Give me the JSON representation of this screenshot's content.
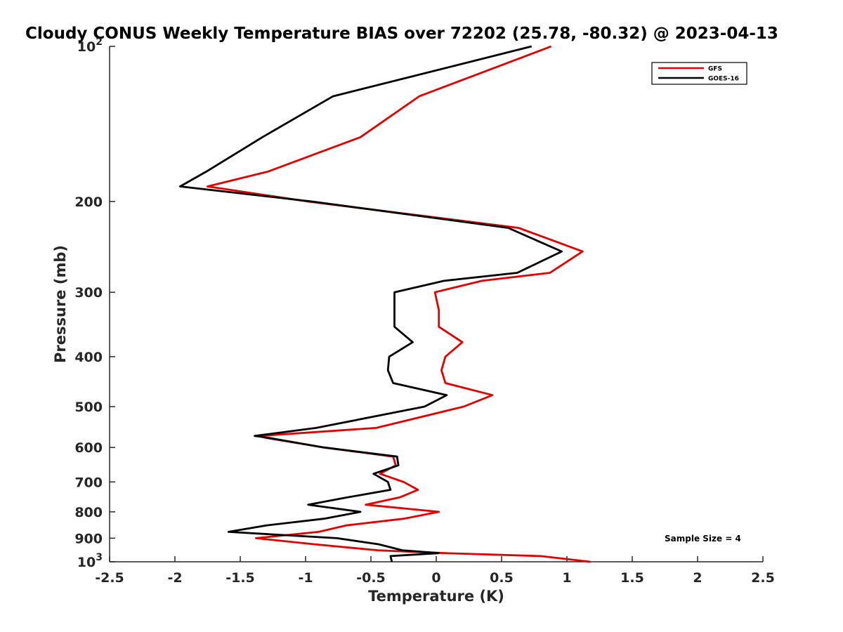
{
  "chart_data": {
    "type": "line",
    "title": "Cloudy CONUS Weekly Temperature BIAS over 72202 (25.78, -80.32) @ 2023-04-13",
    "xlabel": "Temperature (K)",
    "ylabel": "Pressure (mb)",
    "xlim": [
      -2.5,
      2.5
    ],
    "ylim": [
      100,
      1000
    ],
    "y_scale": "log",
    "y_reversed": true,
    "grid": false,
    "legend_position": "top-right",
    "x_ticks": [
      -2.5,
      -2,
      -1.5,
      -1,
      -0.5,
      0,
      0.5,
      1,
      1.5,
      2,
      2.5
    ],
    "x_tick_labels": [
      "-2.5",
      "-2",
      "-1.5",
      "-1",
      "-0.5",
      "0",
      "0.5",
      "1",
      "1.5",
      "2",
      "2.5"
    ],
    "y_ticks": [
      100,
      200,
      300,
      400,
      500,
      600,
      700,
      800,
      900,
      1000
    ],
    "y_tick_labels": [
      {
        "base": "10",
        "exp": "2"
      },
      {
        "base": "200",
        "exp": ""
      },
      {
        "base": "300",
        "exp": ""
      },
      {
        "base": "400",
        "exp": ""
      },
      {
        "base": "500",
        "exp": ""
      },
      {
        "base": "600",
        "exp": ""
      },
      {
        "base": "700",
        "exp": ""
      },
      {
        "base": "800",
        "exp": ""
      },
      {
        "base": "900",
        "exp": ""
      },
      {
        "base": "10",
        "exp": "3"
      }
    ],
    "annotation": "Sample Size = 4",
    "series": [
      {
        "name": "GFS",
        "color": "#e60000",
        "points": [
          [
            0.88,
            100
          ],
          [
            -0.13,
            125
          ],
          [
            -0.58,
            150
          ],
          [
            -1.29,
            175
          ],
          [
            -1.75,
            187
          ],
          [
            -0.98,
            200
          ],
          [
            0.63,
            225
          ],
          [
            1.12,
            250
          ],
          [
            0.87,
            275
          ],
          [
            0.35,
            285
          ],
          [
            -0.01,
            300
          ],
          [
            0.02,
            325
          ],
          [
            0.02,
            350
          ],
          [
            0.2,
            375
          ],
          [
            0.07,
            400
          ],
          [
            0.04,
            425
          ],
          [
            0.07,
            450
          ],
          [
            0.43,
            475
          ],
          [
            0.21,
            500
          ],
          [
            -0.46,
            550
          ],
          [
            -1.36,
            570
          ],
          [
            -1.3,
            575
          ],
          [
            -0.86,
            600
          ],
          [
            -0.33,
            625
          ],
          [
            -0.31,
            650
          ],
          [
            -0.43,
            675
          ],
          [
            -0.25,
            700
          ],
          [
            -0.14,
            725
          ],
          [
            -0.28,
            750
          ],
          [
            -0.54,
            775
          ],
          [
            0.02,
            800
          ],
          [
            -0.25,
            825
          ],
          [
            -0.69,
            850
          ],
          [
            -0.9,
            875
          ],
          [
            -1.38,
            900
          ],
          [
            -0.93,
            925
          ],
          [
            -0.45,
            950
          ],
          [
            0.07,
            962
          ],
          [
            0.8,
            975
          ],
          [
            1.18,
            1000
          ]
        ]
      },
      {
        "name": "GOES-16",
        "color": "#000000",
        "points": [
          [
            0.73,
            100
          ],
          [
            -0.79,
            125
          ],
          [
            -1.33,
            150
          ],
          [
            -1.76,
            175
          ],
          [
            -1.96,
            187
          ],
          [
            -0.95,
            200
          ],
          [
            0.55,
            225
          ],
          [
            0.96,
            250
          ],
          [
            0.62,
            275
          ],
          [
            0.06,
            285
          ],
          [
            -0.32,
            300
          ],
          [
            -0.32,
            325
          ],
          [
            -0.32,
            350
          ],
          [
            -0.18,
            375
          ],
          [
            -0.36,
            400
          ],
          [
            -0.37,
            425
          ],
          [
            -0.33,
            450
          ],
          [
            0.08,
            475
          ],
          [
            -0.09,
            500
          ],
          [
            -0.92,
            550
          ],
          [
            -1.39,
            570
          ],
          [
            -1.28,
            575
          ],
          [
            -0.86,
            600
          ],
          [
            -0.3,
            625
          ],
          [
            -0.29,
            650
          ],
          [
            -0.48,
            675
          ],
          [
            -0.37,
            700
          ],
          [
            -0.35,
            725
          ],
          [
            -0.68,
            750
          ],
          [
            -0.98,
            775
          ],
          [
            -0.58,
            800
          ],
          [
            -0.86,
            825
          ],
          [
            -1.3,
            850
          ],
          [
            -1.59,
            875
          ],
          [
            -0.76,
            900
          ],
          [
            -0.44,
            925
          ],
          [
            -0.26,
            950
          ],
          [
            0.02,
            962
          ],
          [
            -0.35,
            975
          ],
          [
            -0.34,
            1000
          ]
        ]
      }
    ]
  }
}
